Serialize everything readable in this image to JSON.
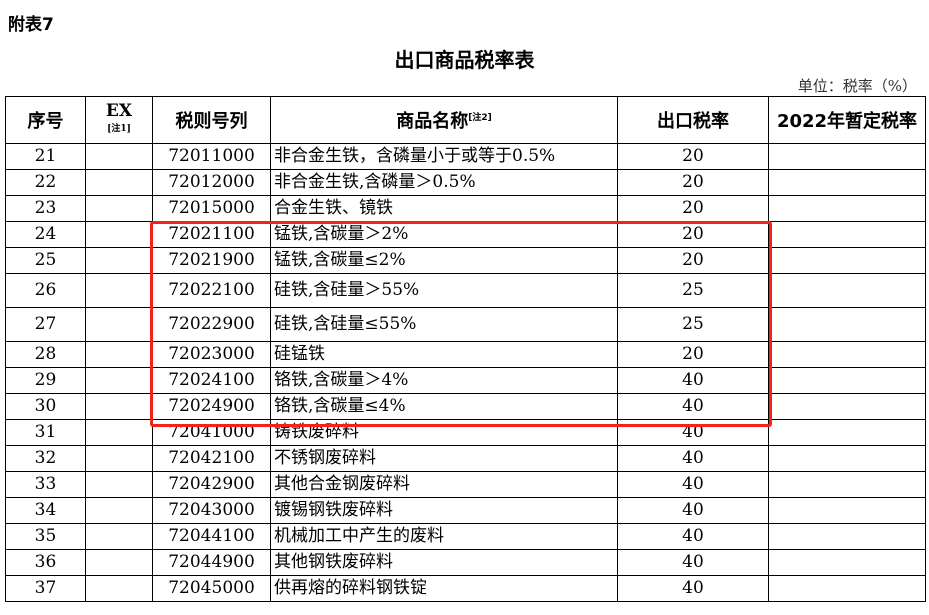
{
  "appendix": "附表7",
  "title": "出口商品税率表",
  "unit": "单位：税率（%）",
  "headers": {
    "seq": "序号",
    "ex": "EX",
    "ex_note": "[注1]",
    "code": "税则号列",
    "name": "商品名称",
    "name_note": "[注2]",
    "rate": "出口税率",
    "temp": "2022年暂定税率"
  },
  "rows": [
    {
      "seq": "21",
      "ex": "",
      "code": "72011000",
      "name": "非合金生铁，含磷量小于或等于0.5%",
      "rate": "20",
      "temp": ""
    },
    {
      "seq": "22",
      "ex": "",
      "code": "72012000",
      "name": "非合金生铁,含磷量＞0.5%",
      "rate": "20",
      "temp": ""
    },
    {
      "seq": "23",
      "ex": "",
      "code": "72015000",
      "name": "合金生铁、镜铁",
      "rate": "20",
      "temp": ""
    },
    {
      "seq": "24",
      "ex": "",
      "code": "72021100",
      "name": "锰铁,含碳量＞2%",
      "rate": "20",
      "temp": ""
    },
    {
      "seq": "25",
      "ex": "",
      "code": "72021900",
      "name": "锰铁,含碳量≤2%",
      "rate": "20",
      "temp": ""
    },
    {
      "seq": "26",
      "ex": "",
      "code": "72022100",
      "name": "硅铁,含硅量＞55%",
      "rate": "25",
      "temp": ""
    },
    {
      "seq": "27",
      "ex": "",
      "code": "72022900",
      "name": "硅铁,含硅量≤55%",
      "rate": "25",
      "temp": ""
    },
    {
      "seq": "28",
      "ex": "",
      "code": "72023000",
      "name": "硅锰铁",
      "rate": "20",
      "temp": ""
    },
    {
      "seq": "29",
      "ex": "",
      "code": "72024100",
      "name": "铬铁,含碳量＞4%",
      "rate": "40",
      "temp": ""
    },
    {
      "seq": "30",
      "ex": "",
      "code": "72024900",
      "name": "铬铁,含碳量≤4%",
      "rate": "40",
      "temp": ""
    },
    {
      "seq": "31",
      "ex": "",
      "code": "72041000",
      "name": "铸铁废碎料",
      "rate": "40",
      "temp": ""
    },
    {
      "seq": "32",
      "ex": "",
      "code": "72042100",
      "name": "不锈钢废碎料",
      "rate": "40",
      "temp": ""
    },
    {
      "seq": "33",
      "ex": "",
      "code": "72042900",
      "name": "其他合金钢废碎料",
      "rate": "40",
      "temp": ""
    },
    {
      "seq": "34",
      "ex": "",
      "code": "72043000",
      "name": "镀锡钢铁废碎料",
      "rate": "40",
      "temp": ""
    },
    {
      "seq": "35",
      "ex": "",
      "code": "72044100",
      "name": "机械加工中产生的废料",
      "rate": "40",
      "temp": ""
    },
    {
      "seq": "36",
      "ex": "",
      "code": "72044900",
      "name": "其他钢铁废碎料",
      "rate": "40",
      "temp": ""
    },
    {
      "seq": "37",
      "ex": "",
      "code": "72045000",
      "name": "供再熔的碎料钢铁锭",
      "rate": "40",
      "temp": ""
    }
  ],
  "highlight_color": "#f02418"
}
